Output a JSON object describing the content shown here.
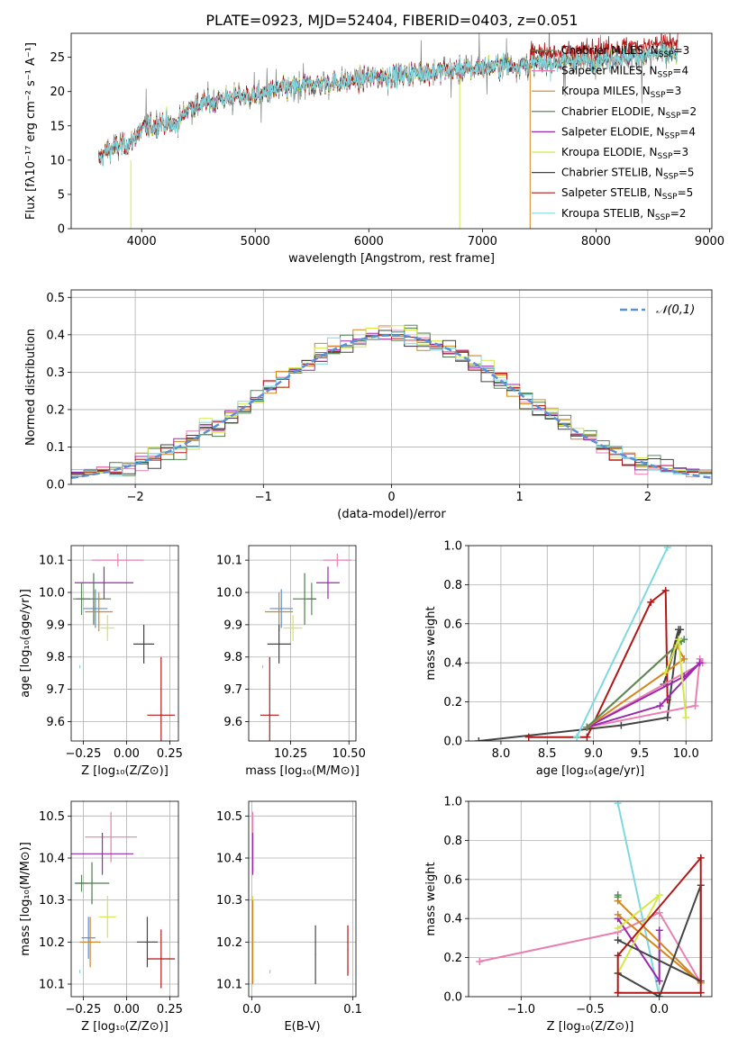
{
  "figure": {
    "title": "PLATE=0923, MJD=52404, FIBERID=0403, z=0.051"
  },
  "chart_data": [
    {
      "id": "spectrum",
      "type": "line",
      "xlabel": "wavelength [Angstrom, rest frame]",
      "ylabel": "Flux [fλ10⁻¹⁷ erg cm⁻² s⁻¹ A⁻¹]",
      "xlim": [
        3380,
        9020
      ],
      "ylim": [
        0,
        28.5
      ],
      "xticks": [
        4000,
        5000,
        6000,
        7000,
        8000,
        9000
      ],
      "yticks": [
        0,
        5,
        10,
        15,
        20,
        25
      ],
      "legend": "top-right",
      "grid": false,
      "data_range": [
        3620,
        8720
      ],
      "series": [
        {
          "name": "Chabrier MILES, N_SSP=3",
          "color": "#5a8a5a"
        },
        {
          "name": "Salpeter MILES, N_SSP=4",
          "color": "#e87fb0"
        },
        {
          "name": "Kroupa MILES, N_SSP=3",
          "color": "#d2861e"
        },
        {
          "name": "Chabrier ELODIE, N_SSP=2",
          "color": "#4c7a4c"
        },
        {
          "name": "Salpeter ELODIE, N_SSP=4",
          "color": "#9c27b0"
        },
        {
          "name": "Kroupa ELODIE, N_SSP=3",
          "color": "#d4e84a"
        },
        {
          "name": "Chabrier STELIB, N_SSP=5",
          "color": "#444444"
        },
        {
          "name": "Salpeter STELIB, N_SSP=5",
          "color": "#b01818"
        },
        {
          "name": "Kroupa STELIB, N_SSP=2",
          "color": "#7fd8e0"
        }
      ],
      "continuum": {
        "x": [
          3620,
          3700,
          3800,
          3900,
          4000,
          4100,
          4200,
          4300,
          4400,
          4500,
          4700,
          5000,
          5300,
          5500,
          5800,
          6000,
          6300,
          6600,
          7000,
          7400,
          7800,
          8200,
          8600,
          8720
        ],
        "y": [
          10,
          11.5,
          12,
          12.5,
          14.5,
          15,
          15.5,
          15,
          17.5,
          18,
          19,
          19.5,
          20.5,
          21,
          21.5,
          22,
          22.5,
          23,
          23.5,
          24,
          24.5,
          25,
          25.5,
          25.5
        ]
      }
    },
    {
      "id": "residuals",
      "type": "histogram",
      "xlabel": "(data-model)/error",
      "ylabel": "Normed distribution",
      "xlim": [
        -2.5,
        2.5
      ],
      "ylim": [
        0,
        0.52
      ],
      "xticks": [
        -2,
        -1,
        0,
        1,
        2
      ],
      "yticks": [
        0.0,
        0.1,
        0.2,
        0.3,
        0.4,
        0.5
      ],
      "grid": true,
      "legend": "top-right",
      "reference": {
        "name": "𝒩(0,1)",
        "color": "#5b8fd6",
        "style": "dashed"
      },
      "bin_width": 0.1
    },
    {
      "id": "age-vs-Z",
      "type": "scatter",
      "xlabel": "Z [log₁₀(Z/Z⊙)]",
      "ylabel": "age  [log₁₀(age/yr)]",
      "xlim": [
        -0.32,
        0.3
      ],
      "ylim": [
        9.54,
        10.145
      ],
      "xticks": [
        -0.25,
        0.0,
        0.25
      ],
      "yticks": [
        9.6,
        9.7,
        9.8,
        9.9,
        10.0,
        10.1
      ],
      "grid": true,
      "points": [
        {
          "color": "#e87fb0",
          "x": -0.05,
          "y": 10.1,
          "xerr": 0.15,
          "yerr": 0.02
        },
        {
          "color": "#9c27b0",
          "x": -0.13,
          "y": 10.03,
          "xerr": 0.17,
          "yerr": 0.05
        },
        {
          "color": "#5a8a5a",
          "x": -0.26,
          "y": 9.98,
          "xerr": 0.05,
          "yerr": 0.05
        },
        {
          "color": "#4c7a4c",
          "x": -0.19,
          "y": 9.98,
          "xerr": 0.1,
          "yerr": 0.08
        },
        {
          "color": "#5b8fd6",
          "x": -0.18,
          "y": 9.95,
          "xerr": 0.07,
          "yerr": 0.06
        },
        {
          "color": "#d2861e",
          "x": -0.16,
          "y": 9.94,
          "xerr": 0.08,
          "yerr": 0.06
        },
        {
          "color": "#d4e84a",
          "x": -0.11,
          "y": 9.89,
          "xerr": 0.04,
          "yerr": 0.04
        },
        {
          "color": "#444444",
          "x": 0.1,
          "y": 9.84,
          "xerr": 0.06,
          "yerr": 0.06
        },
        {
          "color": "#7fd8e0",
          "x": -0.27,
          "y": 9.77,
          "xerr": 0.003,
          "yerr": 0.005
        },
        {
          "color": "#b01818",
          "x": 0.2,
          "y": 9.62,
          "xerr": 0.08,
          "yerr": 0.18
        }
      ]
    },
    {
      "id": "age-vs-mass",
      "type": "scatter",
      "xlabel": "mass [log₁₀(M/M⊙)]",
      "ylabel": "",
      "xlim": [
        10.07,
        10.53
      ],
      "ylim": [
        9.54,
        10.145
      ],
      "xticks": [
        10.25,
        10.5
      ],
      "yticks": [
        9.6,
        9.7,
        9.8,
        9.9,
        10.0,
        10.1
      ],
      "grid": true,
      "points": [
        {
          "color": "#e87fb0",
          "x": 10.45,
          "y": 10.1,
          "xerr": 0.06,
          "yerr": 0.02
        },
        {
          "color": "#9c27b0",
          "x": 10.41,
          "y": 10.03,
          "xerr": 0.05,
          "yerr": 0.05
        },
        {
          "color": "#5a8a5a",
          "x": 10.34,
          "y": 9.98,
          "xerr": 0.02,
          "yerr": 0.05
        },
        {
          "color": "#4c7a4c",
          "x": 10.31,
          "y": 9.98,
          "xerr": 0.05,
          "yerr": 0.08
        },
        {
          "color": "#5b8fd6",
          "x": 10.21,
          "y": 9.95,
          "xerr": 0.05,
          "yerr": 0.06
        },
        {
          "color": "#d2861e",
          "x": 10.2,
          "y": 9.94,
          "xerr": 0.06,
          "yerr": 0.06
        },
        {
          "color": "#d4e84a",
          "x": 10.26,
          "y": 9.89,
          "xerr": 0.04,
          "yerr": 0.04
        },
        {
          "color": "#444444",
          "x": 10.2,
          "y": 9.84,
          "xerr": 0.05,
          "yerr": 0.06
        },
        {
          "color": "#7fd8e0",
          "x": 10.13,
          "y": 9.77,
          "xerr": 0.002,
          "yerr": 0.005
        },
        {
          "color": "#b01818",
          "x": 10.16,
          "y": 9.62,
          "xerr": 0.04,
          "yerr": 0.18
        }
      ]
    },
    {
      "id": "weight-vs-age",
      "type": "line",
      "xlabel": "age  [log₁₀(age/yr)]",
      "ylabel": "mass weight",
      "xlim": [
        7.65,
        10.28
      ],
      "ylim": [
        0,
        1.0
      ],
      "xticks": [
        8.0,
        8.5,
        9.0,
        9.5,
        10.0
      ],
      "yticks": [
        0.0,
        0.2,
        0.4,
        0.6,
        0.8,
        1.0
      ],
      "grid": true,
      "series": [
        {
          "color": "#444444",
          "x": [
            7.76,
            9.3,
            9.8,
            9.92,
            9.76,
            9.94
          ],
          "y": [
            0.0,
            0.08,
            0.12,
            0.57,
            0.29,
            0.57
          ]
        },
        {
          "color": "#b01818",
          "x": [
            8.3,
            8.93,
            9.62,
            9.78,
            9.8
          ],
          "y": [
            0.02,
            0.02,
            0.71,
            0.77,
            0.21
          ]
        },
        {
          "color": "#e87fb0",
          "x": [
            8.93,
            10.1,
            10.15,
            10.18,
            8.93
          ],
          "y": [
            0.07,
            0.18,
            0.42,
            0.4,
            0.07
          ]
        },
        {
          "color": "#9c27b0",
          "x": [
            8.93,
            9.98,
            10.15,
            9.72,
            8.93
          ],
          "y": [
            0.07,
            0.33,
            0.4,
            0.18,
            0.07
          ]
        },
        {
          "color": "#d2861e",
          "x": [
            8.93,
            9.9,
            9.98,
            8.93
          ],
          "y": [
            0.07,
            0.49,
            0.42,
            0.07
          ]
        },
        {
          "color": "#5a8a5a",
          "x": [
            8.93,
            9.95,
            9.98
          ],
          "y": [
            0.07,
            0.51,
            0.52
          ]
        },
        {
          "color": "#d4e84a",
          "x": [
            9.78,
            9.92,
            10.0
          ],
          "y": [
            0.35,
            0.52,
            0.12
          ]
        },
        {
          "color": "#7fd8e0",
          "x": [
            8.82,
            9.8
          ],
          "y": [
            0.02,
            0.99
          ]
        }
      ]
    },
    {
      "id": "mass-vs-Z",
      "type": "scatter",
      "xlabel": "Z [log₁₀(Z/Z⊙)]",
      "ylabel": "mass [log₁₀(M/M⊙)]",
      "xlim": [
        -0.32,
        0.3
      ],
      "ylim": [
        10.07,
        10.535
      ],
      "xticks": [
        -0.25,
        0.0,
        0.25
      ],
      "yticks": [
        10.1,
        10.2,
        10.3,
        10.4,
        10.5
      ],
      "grid": true,
      "points": [
        {
          "color": "#e87fb0",
          "x": -0.09,
          "y": 10.45,
          "xerr": 0.15,
          "yerr": 0.06
        },
        {
          "color": "#9c27b0",
          "x": -0.14,
          "y": 10.41,
          "xerr": 0.18,
          "yerr": 0.05
        },
        {
          "color": "#5a8a5a",
          "x": -0.26,
          "y": 10.34,
          "xerr": 0.03,
          "yerr": 0.02
        },
        {
          "color": "#4c7a4c",
          "x": -0.2,
          "y": 10.34,
          "xerr": 0.1,
          "yerr": 0.05
        },
        {
          "color": "#d4e84a",
          "x": -0.11,
          "y": 10.26,
          "xerr": 0.05,
          "yerr": 0.05
        },
        {
          "color": "#5b8fd6",
          "x": -0.22,
          "y": 10.21,
          "xerr": 0.04,
          "yerr": 0.05
        },
        {
          "color": "#d2861e",
          "x": -0.21,
          "y": 10.2,
          "xerr": 0.06,
          "yerr": 0.06
        },
        {
          "color": "#444444",
          "x": 0.12,
          "y": 10.2,
          "xerr": 0.06,
          "yerr": 0.06
        },
        {
          "color": "#b01818",
          "x": 0.2,
          "y": 10.16,
          "xerr": 0.08,
          "yerr": 0.07
        },
        {
          "color": "#7fd8e0",
          "x": -0.27,
          "y": 10.13,
          "xerr": 0.003,
          "yerr": 0.004
        }
      ]
    },
    {
      "id": "mass-vs-ebv",
      "type": "scatter",
      "xlabel": "E(B-V)",
      "ylabel": "",
      "xlim": [
        -0.003,
        0.103
      ],
      "ylim": [
        10.07,
        10.535
      ],
      "xticks": [
        0.0,
        0.1
      ],
      "yticks": [
        10.1,
        10.2,
        10.3,
        10.4,
        10.5
      ],
      "grid": true,
      "points": [
        {
          "color": "#e87fb0",
          "x": 0.001,
          "y": 10.44,
          "xerr": 0.0005,
          "yerr": 0.07
        },
        {
          "color": "#9c27b0",
          "x": 0.001,
          "y": 10.41,
          "xerr": 0.0005,
          "yerr": 0.05
        },
        {
          "color": "#d4e84a",
          "x": 0.001,
          "y": 10.26,
          "xerr": 0.0005,
          "yerr": 0.05
        },
        {
          "color": "#d2861e",
          "x": 0.001,
          "y": 10.2,
          "xerr": 0.0005,
          "yerr": 0.1
        },
        {
          "color": "#7fd8e0",
          "x": 0.018,
          "y": 10.13,
          "xerr": 0.0005,
          "yerr": 0.004
        },
        {
          "color": "#444444",
          "x": 0.063,
          "y": 10.17,
          "xerr": 0.0005,
          "yerr": 0.07
        },
        {
          "color": "#b01818",
          "x": 0.095,
          "y": 10.18,
          "xerr": 0.0005,
          "yerr": 0.06
        }
      ]
    },
    {
      "id": "weight-vs-Z",
      "type": "line",
      "xlabel": "Z [log₁₀(Z/Z⊙)]",
      "ylabel": "mass weight",
      "xlim": [
        -1.38,
        0.38
      ],
      "ylim": [
        0,
        1.0
      ],
      "xticks": [
        -1.0,
        -0.5,
        0.0
      ],
      "yticks": [
        0.0,
        0.2,
        0.4,
        0.6,
        0.8,
        1.0
      ],
      "grid": true,
      "series": [
        {
          "color": "#e87fb0",
          "x": [
            -1.3,
            -0.3,
            0.0,
            0.3
          ],
          "y": [
            0.18,
            0.33,
            0.43,
            0.07
          ]
        },
        {
          "color": "#7fd8e0",
          "x": [
            -0.3,
            0.0
          ],
          "y": [
            0.99,
            0.0
          ]
        },
        {
          "color": "#9c27b0",
          "x": [
            -0.3,
            0.0,
            0.0
          ],
          "y": [
            0.4,
            0.08,
            0.34
          ]
        },
        {
          "color": "#d2861e",
          "x": [
            -0.3,
            0.3,
            -0.3
          ],
          "y": [
            0.42,
            0.07,
            0.49
          ]
        },
        {
          "color": "#d4e84a",
          "x": [
            -0.3,
            0.0,
            -0.3
          ],
          "y": [
            0.12,
            0.52,
            0.35
          ]
        },
        {
          "color": "#444444",
          "x": [
            -0.3,
            0.0,
            0.3,
            0.3,
            -0.3
          ],
          "y": [
            0.12,
            0.0,
            0.57,
            0.08,
            0.29
          ]
        },
        {
          "color": "#b01818",
          "x": [
            -0.3,
            -0.3,
            0.3,
            0.3,
            -0.3
          ],
          "y": [
            0.02,
            0.21,
            0.71,
            0.02,
            0.02
          ]
        },
        {
          "color": "#5a8a5a",
          "x": [
            -0.3,
            -0.3
          ],
          "y": [
            0.51,
            0.52
          ]
        }
      ]
    }
  ]
}
